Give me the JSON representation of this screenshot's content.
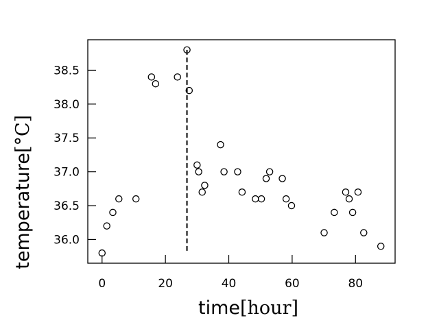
{
  "chart_data": {
    "type": "scatter",
    "xlabel": "time",
    "xlabel_unit": "[hour]",
    "ylabel": "temperature",
    "ylabel_unit": "[°C]",
    "xlim": [
      -4.5,
      92.5
    ],
    "ylim": [
      35.65,
      38.95
    ],
    "xticks": [
      0,
      20,
      40,
      60,
      80
    ],
    "yticks": [
      36.0,
      36.5,
      37.0,
      37.5,
      38.0,
      38.5
    ],
    "ytick_labels": [
      "36.0",
      "36.5",
      "37.0",
      "37.5",
      "38.0",
      "38.5"
    ],
    "grid": false,
    "marker": "open-circle",
    "vline": {
      "x": 26.8,
      "y_from": 35.8,
      "y_to": 38.8,
      "style": "dashed"
    },
    "points": [
      {
        "x": 0.0,
        "y": 35.8
      },
      {
        "x": 1.5,
        "y": 36.2
      },
      {
        "x": 3.4,
        "y": 36.4
      },
      {
        "x": 5.3,
        "y": 36.6
      },
      {
        "x": 10.7,
        "y": 36.6
      },
      {
        "x": 15.6,
        "y": 38.4
      },
      {
        "x": 16.9,
        "y": 38.3
      },
      {
        "x": 23.8,
        "y": 38.4
      },
      {
        "x": 26.8,
        "y": 38.8
      },
      {
        "x": 27.5,
        "y": 38.2
      },
      {
        "x": 30.0,
        "y": 37.1
      },
      {
        "x": 30.5,
        "y": 37.0
      },
      {
        "x": 31.6,
        "y": 36.7
      },
      {
        "x": 32.4,
        "y": 36.8
      },
      {
        "x": 37.4,
        "y": 37.4
      },
      {
        "x": 38.5,
        "y": 37.0
      },
      {
        "x": 42.8,
        "y": 37.0
      },
      {
        "x": 44.2,
        "y": 36.7
      },
      {
        "x": 48.4,
        "y": 36.6
      },
      {
        "x": 50.3,
        "y": 36.6
      },
      {
        "x": 51.8,
        "y": 36.9
      },
      {
        "x": 52.9,
        "y": 37.0
      },
      {
        "x": 56.9,
        "y": 36.9
      },
      {
        "x": 58.1,
        "y": 36.6
      },
      {
        "x": 59.8,
        "y": 36.5
      },
      {
        "x": 70.1,
        "y": 36.1
      },
      {
        "x": 73.3,
        "y": 36.4
      },
      {
        "x": 76.9,
        "y": 36.7
      },
      {
        "x": 78.0,
        "y": 36.6
      },
      {
        "x": 79.1,
        "y": 36.4
      },
      {
        "x": 80.8,
        "y": 36.7
      },
      {
        "x": 82.6,
        "y": 36.1
      },
      {
        "x": 88.0,
        "y": 35.9
      }
    ]
  }
}
